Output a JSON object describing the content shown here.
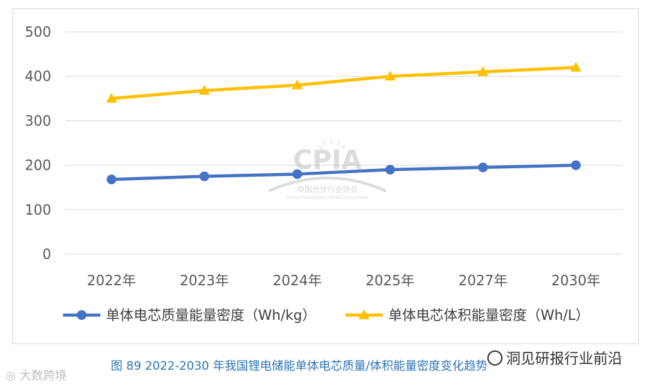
{
  "chart_data": {
    "type": "line",
    "categories": [
      "2022年",
      "2023年",
      "2024年",
      "2025年",
      "2027年",
      "2030年"
    ],
    "series": [
      {
        "name": "单体电芯质量能量密度（Wh/kg）",
        "values": [
          168,
          175,
          180,
          190,
          195,
          200
        ],
        "color": "#4472c4",
        "marker": "circle"
      },
      {
        "name": "单体电芯体积能量密度（Wh/L）",
        "values": [
          350,
          368,
          380,
          400,
          410,
          420
        ],
        "color": "#ffc000",
        "marker": "triangle"
      }
    ],
    "y_ticks": [
      0,
      100,
      200,
      300,
      400,
      500
    ],
    "ylim": [
      0,
      500
    ],
    "grid": true,
    "legend": "bottom"
  },
  "caption": "图 89    2022-2030 年我国锂电储能单体电芯质量/体积能量密度变化趋势",
  "watermark_logo": {
    "name": "CPIA",
    "cn": "中国光伏行业协会",
    "en": "China Photovoltaic Industry Association"
  },
  "watermark_left": "大数跨境",
  "watermark_right": "洞见研报行业前沿"
}
